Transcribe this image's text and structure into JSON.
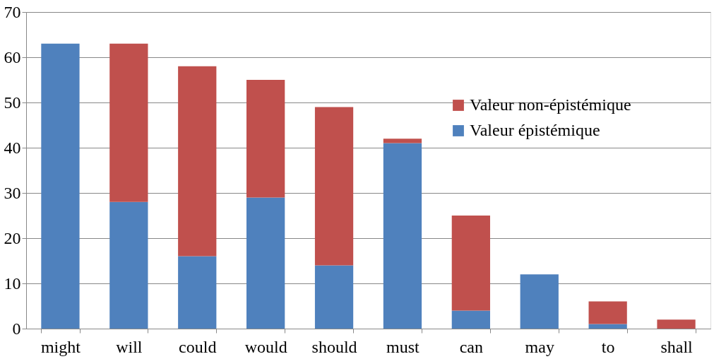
{
  "chart_data": {
    "type": "bar",
    "stacked": true,
    "categories": [
      "might",
      "will",
      "could",
      "would",
      "should",
      "must",
      "can",
      "may",
      "to",
      "shall"
    ],
    "series": [
      {
        "name": "Valeur épistémique",
        "color": "#4f81bd",
        "values": [
          63,
          28,
          16,
          29,
          14,
          41,
          4,
          12,
          1,
          0
        ]
      },
      {
        "name": "Valeur non-épistémique",
        "color": "#c0504d",
        "values": [
          0,
          35,
          42,
          26,
          35,
          1,
          21,
          0,
          5,
          2
        ]
      }
    ],
    "ylim": [
      0,
      70
    ],
    "yticks": [
      0,
      10,
      20,
      30,
      40,
      50,
      60,
      70
    ],
    "grid": "y",
    "legend": "right"
  }
}
